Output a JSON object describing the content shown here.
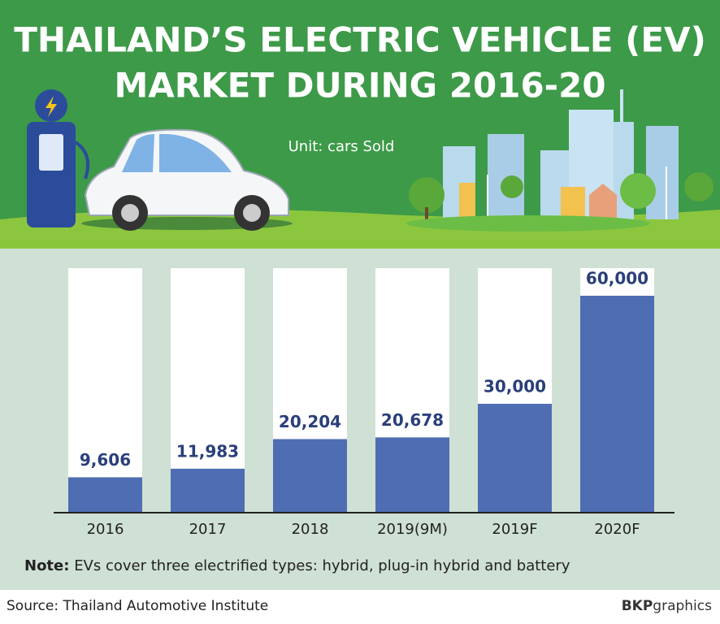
{
  "chart_data": {
    "type": "bar",
    "title": [
      "THAILAND’S ELECTRIC VEHICLE (EV)",
      "MARKET DURING 2016-20"
    ],
    "subtitle": "Unit: cars Sold",
    "categories": [
      "2016",
      "2017",
      "2018",
      "2019(9M)",
      "2019F",
      "2020F"
    ],
    "values": [
      9606,
      11983,
      20204,
      20678,
      30000,
      60000
    ],
    "value_labels": [
      "9,606",
      "11,983",
      "20,204",
      "20,678",
      "30,000",
      "60,000"
    ],
    "color": "#4f6db3",
    "note": {
      "label": "Note:",
      "text": "EVs cover three electrified types: hybrid, plug-in hybrid and battery"
    },
    "source": "Source: Thailand Automotive Institute",
    "credit": {
      "bold": "BKP",
      "light": "graphics"
    }
  }
}
